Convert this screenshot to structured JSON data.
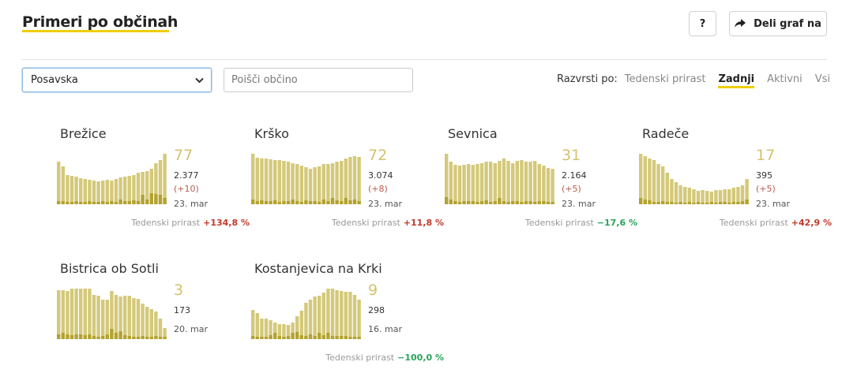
{
  "header": {
    "title": "Primeri po občinah",
    "help_label": "?",
    "share_label": "Deli graf na"
  },
  "filters": {
    "region_selected": "Posavska",
    "search_placeholder": "Poišči občino"
  },
  "sort": {
    "label": "Razvrsti po:",
    "options": [
      "Tedenski prirast",
      "Zadnji",
      "Aktivni",
      "Vsi"
    ],
    "active": "Zadnji"
  },
  "growth_label": "Tedenski prirast",
  "colors": {
    "accent": "#f2cc0c",
    "bar": "#d4c97a",
    "bar_dark": "#b3a22e",
    "growth_up": "#c0392b",
    "growth_down": "#27a35a"
  },
  "municipalities": [
    {
      "name": "Brežice",
      "active": "77",
      "total": "2.377",
      "delta": "(+10)",
      "date": "23. mar",
      "growth": "+134,8 %",
      "growth_dir": "up",
      "bars": [
        0.85,
        0.75,
        0.58,
        0.57,
        0.55,
        0.52,
        0.5,
        0.48,
        0.47,
        0.46,
        0.47,
        0.48,
        0.47,
        0.5,
        0.53,
        0.54,
        0.56,
        0.58,
        0.62,
        0.64,
        0.66,
        0.71,
        0.82,
        0.87,
        1.0
      ],
      "recent": [
        0.06,
        0.06,
        0.05,
        0.04,
        0.06,
        0.04,
        0.05,
        0.06,
        0.05,
        0.05,
        0.06,
        0.05,
        0.07,
        0.04,
        0.09,
        0.06,
        0.07,
        0.08,
        0.06,
        0.18,
        0.09,
        0.22,
        0.2,
        0.18,
        0.12
      ]
    },
    {
      "name": "Krško",
      "active": "72",
      "total": "3.074",
      "delta": "(+8)",
      "date": "23. mar",
      "growth": "+11,8 %",
      "growth_dir": "up",
      "bars": [
        1.0,
        0.92,
        0.9,
        0.9,
        0.89,
        0.88,
        0.87,
        0.86,
        0.84,
        0.82,
        0.8,
        0.77,
        0.73,
        0.71,
        0.73,
        0.75,
        0.79,
        0.8,
        0.82,
        0.84,
        0.86,
        0.9,
        0.93,
        0.96,
        0.93
      ],
      "recent": [
        0.1,
        0.06,
        0.08,
        0.07,
        0.06,
        0.08,
        0.05,
        0.07,
        0.06,
        0.09,
        0.06,
        0.05,
        0.08,
        0.06,
        0.07,
        0.05,
        0.1,
        0.07,
        0.12,
        0.08,
        0.06,
        0.12,
        0.08,
        0.1,
        0.06
      ]
    },
    {
      "name": "Sevnica",
      "active": "31",
      "total": "2.164",
      "delta": "(+5)",
      "date": "23. mar",
      "growth": "−17,6 %",
      "growth_dir": "down",
      "bars": [
        1.0,
        0.85,
        0.78,
        0.76,
        0.78,
        0.8,
        0.78,
        0.8,
        0.82,
        0.84,
        0.85,
        0.82,
        0.86,
        0.9,
        0.86,
        0.82,
        0.86,
        0.88,
        0.85,
        0.85,
        0.86,
        0.8,
        0.76,
        0.72,
        0.7
      ],
      "recent": [
        0.14,
        0.09,
        0.06,
        0.05,
        0.06,
        0.06,
        0.07,
        0.05,
        0.06,
        0.08,
        0.05,
        0.07,
        0.12,
        0.06,
        0.05,
        0.07,
        0.06,
        0.05,
        0.06,
        0.07,
        0.05,
        0.06,
        0.07,
        0.05,
        0.05
      ]
    },
    {
      "name": "Radeče",
      "active": "17",
      "total": "395",
      "delta": "(+5)",
      "date": "23. mar",
      "growth": "+42,9 %",
      "growth_dir": "up",
      "bars": [
        1.0,
        0.95,
        0.9,
        0.88,
        0.8,
        0.75,
        0.62,
        0.5,
        0.44,
        0.38,
        0.34,
        0.33,
        0.3,
        0.27,
        0.28,
        0.26,
        0.25,
        0.28,
        0.28,
        0.3,
        0.3,
        0.33,
        0.34,
        0.38,
        0.5
      ],
      "recent": [
        0.12,
        0.09,
        0.08,
        0.05,
        0.04,
        0.06,
        0.05,
        0.04,
        0.03,
        0.04,
        0.03,
        0.04,
        0.03,
        0.04,
        0.03,
        0.02,
        0.04,
        0.03,
        0.04,
        0.05,
        0.03,
        0.05,
        0.04,
        0.06,
        0.1
      ]
    },
    {
      "name": "Bistrica ob Sotli",
      "active": "3",
      "total": "173",
      "delta": "",
      "date": "20. mar",
      "growth": "",
      "growth_dir": "",
      "bars": [
        0.97,
        0.97,
        0.96,
        1.0,
        1.0,
        1.0,
        1.0,
        1.0,
        0.88,
        0.86,
        0.78,
        0.78,
        0.95,
        0.87,
        0.84,
        0.86,
        0.86,
        0.82,
        0.8,
        0.7,
        0.64,
        0.6,
        0.54,
        0.4,
        0.22
      ],
      "recent": [
        0.1,
        0.12,
        0.1,
        0.08,
        0.1,
        0.1,
        0.08,
        0.1,
        0.06,
        0.05,
        0.06,
        0.1,
        0.2,
        0.12,
        0.15,
        0.08,
        0.06,
        0.05,
        0.05,
        0.06,
        0.05,
        0.05,
        0.06,
        0.05,
        0.04
      ]
    },
    {
      "name": "Kostanjevica na Krki",
      "active": "9",
      "total": "298",
      "delta": "",
      "date": "16. mar",
      "growth": "−100,0 %",
      "growth_dir": "down",
      "bars": [
        0.58,
        0.52,
        0.4,
        0.4,
        0.37,
        0.33,
        0.3,
        0.3,
        0.28,
        0.33,
        0.45,
        0.57,
        0.72,
        0.78,
        0.84,
        0.86,
        0.92,
        1.0,
        1.0,
        0.97,
        0.96,
        0.93,
        0.94,
        0.88,
        0.78
      ],
      "recent": [
        0.06,
        0.05,
        0.04,
        0.05,
        0.08,
        0.12,
        0.06,
        0.05,
        0.07,
        0.12,
        0.14,
        0.08,
        0.07,
        0.1,
        0.06,
        0.12,
        0.08,
        0.12,
        0.07,
        0.06,
        0.06,
        0.07,
        0.05,
        0.05,
        0.04
      ]
    }
  ]
}
